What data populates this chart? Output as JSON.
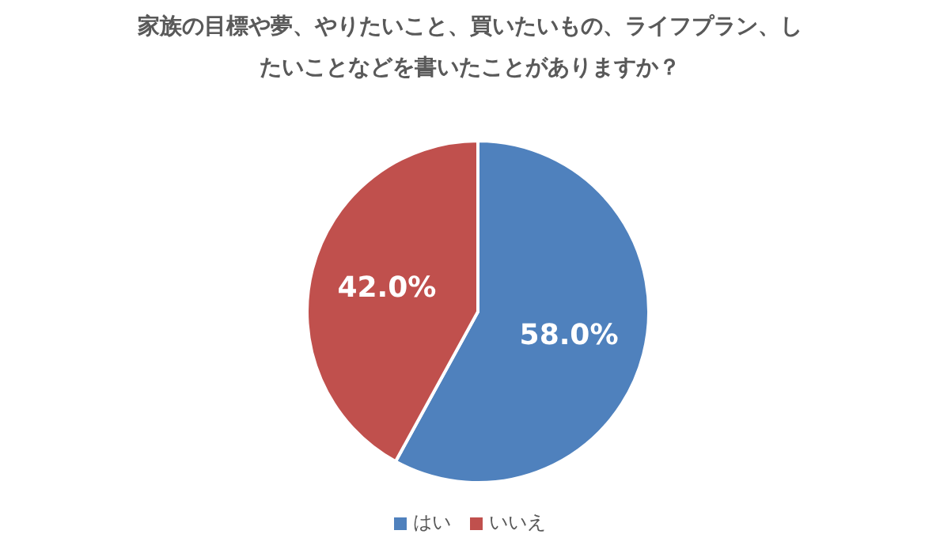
{
  "chart_data": {
    "type": "pie",
    "title": "家族の目標や夢、やりたいこと、買いたいもの、ライフプラン、したいことなどを書いたことがありますか？",
    "categories": [
      "はい",
      "いいえ"
    ],
    "values": [
      58,
      42
    ],
    "colors": [
      "#4f81bd",
      "#c0504d"
    ],
    "value_labels": [
      "58.0%",
      "42.0%"
    ],
    "legend": "bottom"
  }
}
